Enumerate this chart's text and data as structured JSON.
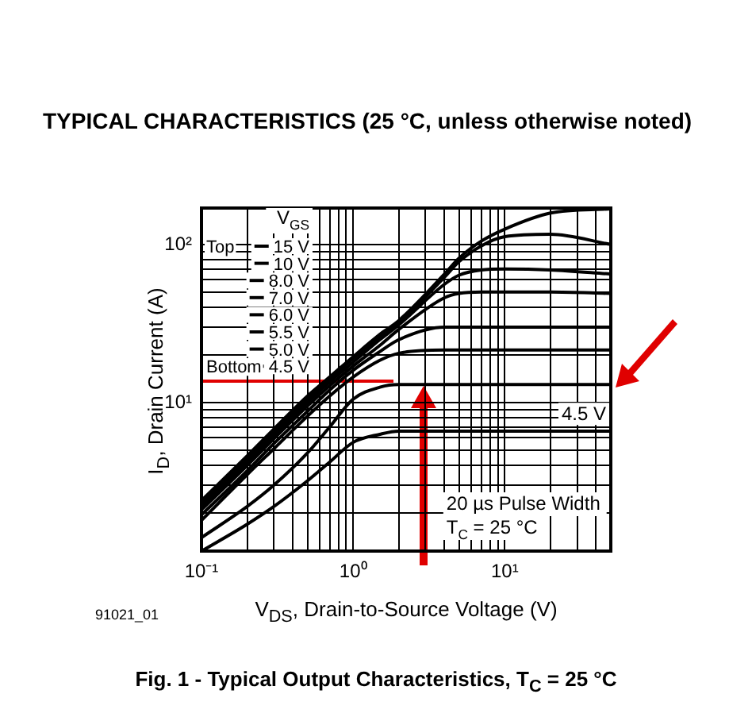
{
  "chart_data": {
    "type": "line",
    "title": "Fig. 1 - Typical Output Characteristics, T$_{C}$ = 25 °C",
    "xlabel": "V$_{DS}$, Drain-to-Source Voltage (V)",
    "ylabel": "I$_{D}$, Drain Current (A)",
    "legend_title": "V$_{GS}$",
    "annotations": [
      "TYPICAL CHARACTERISTICS (25 °C, unless otherwise noted)",
      "Top",
      "Bottom",
      "20 µs Pulse Width",
      "T$_{C}$ = 25 °C",
      "4.5 V",
      "91021_01"
    ],
    "x": [
      0.1,
      0.2,
      0.3,
      0.5,
      0.7,
      1,
      1.5,
      2,
      4,
      5,
      7,
      10,
      20,
      50
    ],
    "series": [
      {
        "name": "15 V",
        "color": "#000000",
        "values": [
          2.4,
          4.6,
          6.8,
          11,
          14.5,
          19.5,
          27,
          33,
          65,
          82,
          105,
          125,
          158,
          168
        ]
      },
      {
        "name": "10 V",
        "color": "#000000",
        "values": [
          2.3,
          4.4,
          6.5,
          10.5,
          14,
          19,
          26,
          32,
          62,
          78,
          98,
          112,
          116,
          100
        ]
      },
      {
        "name": "8.0 V",
        "color": "#000000",
        "values": [
          2.2,
          4.2,
          6.2,
          10,
          13.5,
          18,
          25,
          31,
          56,
          64,
          69,
          70,
          69,
          65
        ]
      },
      {
        "name": "7.0 V",
        "color": "#000000",
        "values": [
          2.1,
          4,
          5.9,
          9.5,
          12.8,
          17,
          23,
          29,
          46,
          49,
          50,
          50,
          50,
          49
        ]
      },
      {
        "name": "6.0 V",
        "color": "#000000",
        "values": [
          1.95,
          3.7,
          5.5,
          8.8,
          12,
          16,
          21,
          25,
          30,
          30,
          30,
          30,
          30,
          30
        ]
      },
      {
        "name": "5.5 V",
        "color": "#000000",
        "values": [
          1.8,
          3.5,
          5.1,
          8.2,
          11,
          14.5,
          18.5,
          20.5,
          21.5,
          21.5,
          21.5,
          21.5,
          21.5,
          21.5
        ]
      },
      {
        "name": "5.0 V",
        "color": "#000000",
        "values": [
          1.4,
          2.2,
          3,
          4.8,
          7,
          10.5,
          12.5,
          13,
          13,
          13,
          13,
          13,
          13,
          13
        ]
      },
      {
        "name": "4.5 V",
        "color": "#000000",
        "values": [
          1.15,
          1.7,
          2.2,
          3.2,
          4.2,
          5.6,
          6.3,
          6.6,
          6.6,
          6.6,
          6.6,
          6.6,
          6.6,
          6.6
        ]
      }
    ],
    "xlim": [
      0.1,
      50
    ],
    "ylim": [
      1.15,
      170
    ],
    "xticks": [
      {
        "value": 0.1,
        "label": "10⁻¹"
      },
      {
        "value": 0.2,
        "label": null
      },
      {
        "value": 0.3,
        "label": null
      },
      {
        "value": 0.4,
        "label": null
      },
      {
        "value": 0.5,
        "label": null
      },
      {
        "value": 0.6,
        "label": null
      },
      {
        "value": 0.7,
        "label": null
      },
      {
        "value": 0.8,
        "label": null
      },
      {
        "value": 0.9,
        "label": null
      },
      {
        "value": 1,
        "label": "10⁰"
      },
      {
        "value": 2,
        "label": null
      },
      {
        "value": 3,
        "label": null
      },
      {
        "value": 4,
        "label": null
      },
      {
        "value": 5,
        "label": null
      },
      {
        "value": 6,
        "label": null
      },
      {
        "value": 7,
        "label": null
      },
      {
        "value": 8,
        "label": null
      },
      {
        "value": 9,
        "label": null
      },
      {
        "value": 10,
        "label": "10¹"
      },
      {
        "value": 20,
        "label": null
      },
      {
        "value": 30,
        "label": null
      },
      {
        "value": 40,
        "label": null
      },
      {
        "value": 50,
        "label": null
      }
    ],
    "yticks": [
      {
        "value": 2,
        "label": null
      },
      {
        "value": 3,
        "label": null
      },
      {
        "value": 4,
        "label": null
      },
      {
        "value": 5,
        "label": null
      },
      {
        "value": 6,
        "label": null
      },
      {
        "value": 7,
        "label": null
      },
      {
        "value": 8,
        "label": null
      },
      {
        "value": 9,
        "label": null
      },
      {
        "value": 10,
        "label": "10¹"
      },
      {
        "value": 20,
        "label": null
      },
      {
        "value": 30,
        "label": null
      },
      {
        "value": 40,
        "label": null
      },
      {
        "value": 50,
        "label": null
      },
      {
        "value": 60,
        "label": null
      },
      {
        "value": 70,
        "label": null
      },
      {
        "value": 80,
        "label": null
      },
      {
        "value": 90,
        "label": null
      },
      {
        "value": 100,
        "label": "10²"
      }
    ],
    "log": "xy",
    "grid": true,
    "legend": "top left",
    "marker": "none",
    "line_style": "solid"
  }
}
